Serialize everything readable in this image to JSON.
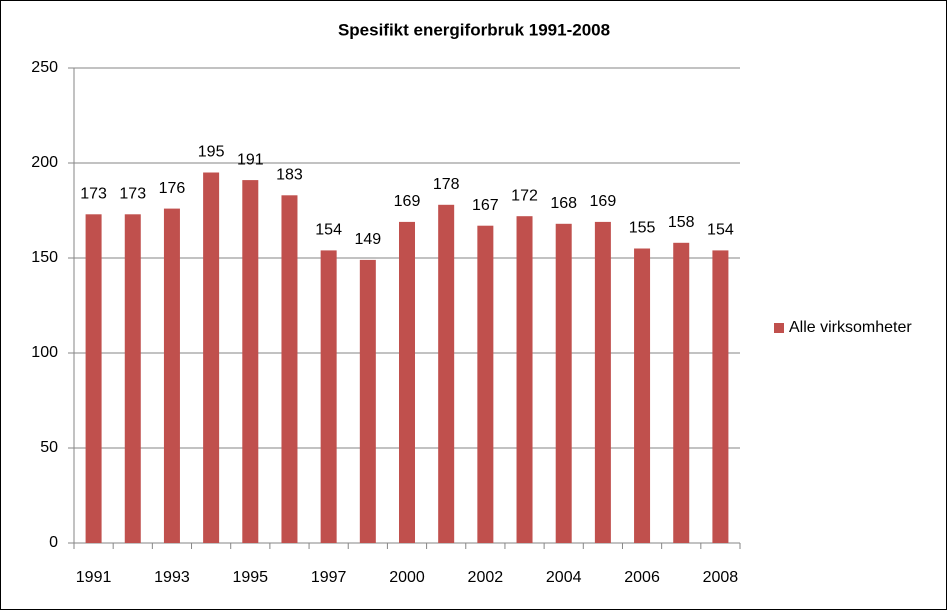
{
  "chart_data": {
    "type": "bar",
    "title": "Spesifikt energiforbruk 1991-2008",
    "categories": [
      "1991",
      null,
      "1993",
      null,
      "1995",
      null,
      "1997",
      null,
      "2000",
      null,
      "2002",
      null,
      "2004",
      null,
      "2006",
      null,
      "2008"
    ],
    "series": [
      {
        "name": "Alle virksomheter",
        "color": "#c0504d",
        "values": [
          173,
          173,
          176,
          195,
          191,
          183,
          154,
          149,
          169,
          178,
          167,
          172,
          168,
          169,
          155,
          158,
          154
        ]
      }
    ],
    "ylim": [
      0,
      250
    ],
    "yticks": [
      0,
      50,
      100,
      150,
      200,
      250
    ],
    "grid": true,
    "legend": "right"
  }
}
